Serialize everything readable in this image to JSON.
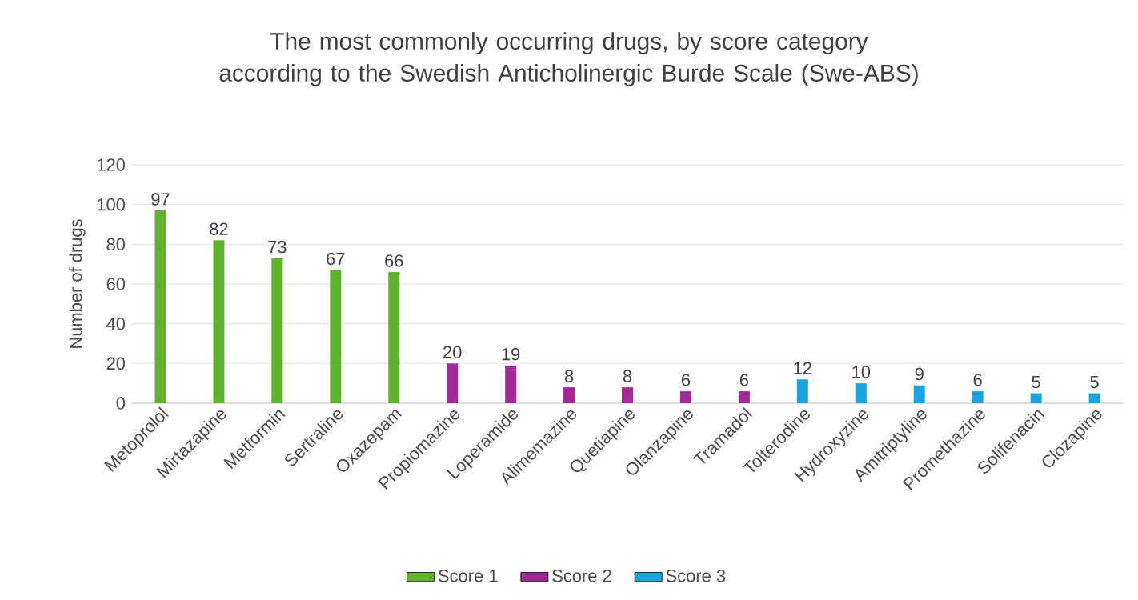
{
  "chart_data": {
    "type": "bar",
    "title": "The most commonly occurring drugs, by score category according to the Swedish Anticholinergic Burde Scale (Swe-ABS)",
    "ylabel": "Number of drugs",
    "categories": [
      "Metoprolol",
      "Mirtazapine",
      "Metformin",
      "Sertraline",
      "Oxazepam",
      "Propiomazine",
      "Loperamide",
      "Alimemazine",
      "Quetiapine",
      "Olanzapine",
      "Tramadol",
      "Tolterodine",
      "Hydroxyzine",
      "Amitriptyline",
      "Promethazine",
      "Solifenacin",
      "Clozapine"
    ],
    "series": [
      {
        "name": "Score 1",
        "color": "#5fb12e",
        "values": [
          97,
          82,
          73,
          67,
          66,
          null,
          null,
          null,
          null,
          null,
          null,
          null,
          null,
          null,
          null,
          null,
          null
        ]
      },
      {
        "name": "Score 2",
        "color": "#a12a94",
        "values": [
          null,
          null,
          null,
          null,
          null,
          20,
          19,
          8,
          8,
          6,
          6,
          null,
          null,
          null,
          null,
          null,
          null
        ]
      },
      {
        "name": "Score 3",
        "color": "#1aa3dd",
        "values": [
          null,
          null,
          null,
          null,
          null,
          null,
          null,
          null,
          null,
          null,
          null,
          12,
          10,
          9,
          6,
          5,
          5
        ]
      }
    ],
    "ylim": [
      0,
      120
    ],
    "yticks": [
      0,
      20,
      40,
      60,
      80,
      100,
      120
    ],
    "grid": "y",
    "legend": "bottom",
    "data_labels": true
  }
}
